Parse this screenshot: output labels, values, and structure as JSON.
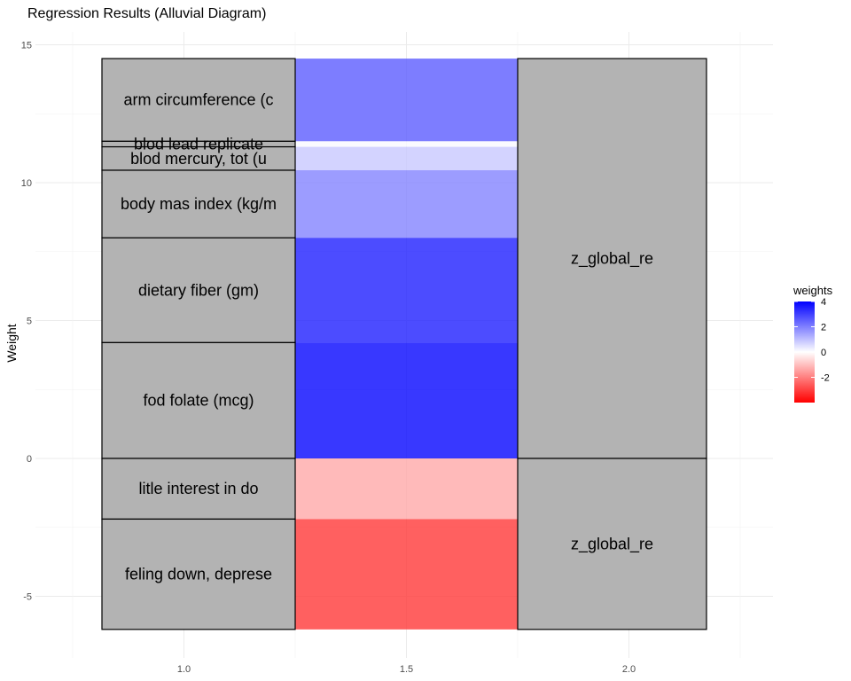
{
  "chart_data": {
    "type": "alluvial",
    "title": "Regression Results (Alluvial Diagram)",
    "xlabel": "",
    "ylabel": "Weight",
    "x_ticks": [
      "1.0",
      "1.5",
      "2.0"
    ],
    "y_ticks": [
      -5,
      0,
      5,
      10,
      15
    ],
    "xlim": [
      0.75,
      2.25
    ],
    "ylim": [
      -6.2,
      14.5
    ],
    "grid": true,
    "strata_left": [
      {
        "label": "arm circumference (c",
        "bottom": 11.5,
        "top": 14.5
      },
      {
        "label": "blod lead replicate",
        "bottom": 11.3,
        "top": 11.5
      },
      {
        "label": "blod mercury, tot (u",
        "bottom": 10.45,
        "top": 11.3
      },
      {
        "label": "body mas index (kg/m",
        "bottom": 8.0,
        "top": 10.45
      },
      {
        "label": "dietary fiber (gm)",
        "bottom": 4.2,
        "top": 8.0
      },
      {
        "label": "fod folate (mcg)",
        "bottom": 0.0,
        "top": 4.2
      },
      {
        "label": "litle interest in do",
        "bottom": -2.2,
        "top": 0.0
      },
      {
        "label": "feling down, deprese",
        "bottom": -6.2,
        "top": -2.2
      }
    ],
    "strata_right": [
      {
        "label": "z_global_re",
        "bottom": 0.0,
        "top": 14.5
      },
      {
        "label": "z_global_re",
        "bottom": -6.2,
        "top": 0.0
      }
    ],
    "flows": [
      {
        "source": "arm circumference (c",
        "bottom": 11.5,
        "top": 14.5,
        "weight": 2.6
      },
      {
        "source": "blod lead replicate",
        "bottom": 11.3,
        "top": 11.5,
        "weight": 0.1
      },
      {
        "source": "blod mercury, tot (u",
        "bottom": 10.45,
        "top": 11.3,
        "weight": 0.9
      },
      {
        "source": "body mas index (kg/m",
        "bottom": 8.0,
        "top": 10.45,
        "weight": 2.0
      },
      {
        "source": "dietary fiber (gm)",
        "bottom": 4.2,
        "top": 8.0,
        "weight": 3.6
      },
      {
        "source": "fod folate (mcg)",
        "bottom": 0.0,
        "top": 4.2,
        "weight": 4.0
      },
      {
        "source": "litle interest in do",
        "bottom": -2.2,
        "top": 0.0,
        "weight": -1.4
      },
      {
        "source": "feling down, deprese",
        "bottom": -6.2,
        "top": -2.2,
        "weight": -3.2
      }
    ],
    "legend": {
      "title": "weights",
      "ticks": [
        4,
        2,
        0,
        -2
      ],
      "range": [
        -4,
        4
      ],
      "placement": "right"
    },
    "colors": {
      "high": "#0000ff",
      "mid": "#ffffff",
      "low": "#ff0000",
      "stratum_fill": "#b3b3b3",
      "stratum_stroke": "#000000",
      "grid": "#ebebeb"
    }
  }
}
